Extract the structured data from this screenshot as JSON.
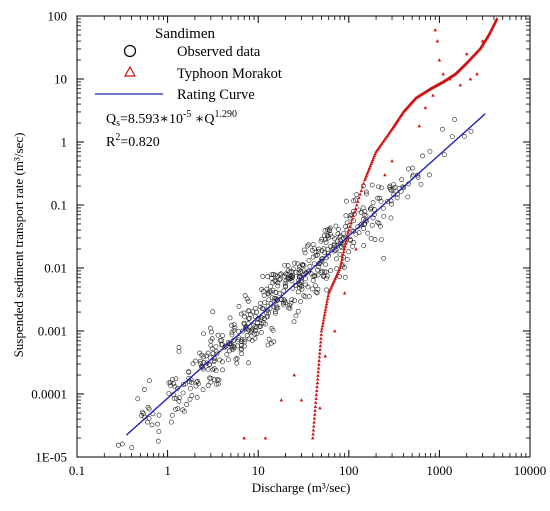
{
  "chart_data": {
    "type": "scatter",
    "title": "",
    "xlabel": "Discharge (m³/sec)",
    "ylabel": "Suspended sediment transport rate (m³/sec)",
    "x_scale": "log",
    "y_scale": "log",
    "xlim": [
      0.1,
      10000
    ],
    "ylim": [
      1e-05,
      100
    ],
    "x_ticks": [
      0.1,
      1,
      10,
      100,
      1000,
      10000
    ],
    "x_tick_labels": [
      "0.1",
      "1",
      "10",
      "100",
      "1000",
      "10000"
    ],
    "y_ticks": [
      1e-05,
      0.0001,
      0.001,
      0.01,
      0.1,
      1,
      10,
      100
    ],
    "y_tick_labels": [
      "1E-05",
      "0.0001",
      "0.001",
      "0.01",
      "0.1",
      "1",
      "10",
      "100"
    ],
    "grid": false,
    "legend": {
      "placement": "top-left",
      "title": "Sandimen",
      "entries": [
        {
          "label": "Observed data",
          "marker": "open-circle",
          "color": "#000000"
        },
        {
          "label": "Typhoon Morakot",
          "marker": "open-triangle",
          "color": "#cc0000"
        },
        {
          "label": "Rating Curve",
          "marker": "line",
          "color": "#0000cc"
        }
      ]
    },
    "annotation": {
      "equation_prefix": "Q",
      "equation_sub": "s",
      "equation_mid": "=8.593∗10",
      "equation_exp1": "-5",
      "equation_tail": " ∗Q",
      "equation_exp2": "1.290",
      "r2_prefix": "R",
      "r2_exp": "2",
      "r2_value": "=0.820"
    },
    "series": [
      {
        "name": "Rating Curve",
        "type": "line",
        "color": "#2222bb",
        "x": [
          0.35,
          3200
        ],
        "y": [
          2.22e-05,
          2.8
        ]
      },
      {
        "name": "Observed data",
        "type": "scatter",
        "marker": "open-circle",
        "color": "#222222",
        "generator": {
          "seed": 7,
          "count": 560,
          "x_range": [
            0.1,
            3700
          ],
          "coef": 8.593e-05,
          "exponent": 1.29,
          "log_sigma": 0.75,
          "y_min": 1.2e-05,
          "y_max": 90
        }
      },
      {
        "name": "Typhoon Morakot",
        "type": "scatter",
        "marker": "open-triangle",
        "color": "#cc1111",
        "path": [
          [
            40,
            2e-05
          ],
          [
            45,
            0.00015
          ],
          [
            50,
            0.001
          ],
          [
            60,
            0.004
          ],
          [
            80,
            0.01
          ],
          [
            100,
            0.04
          ],
          [
            150,
            0.25
          ],
          [
            200,
            0.7
          ],
          [
            300,
            1.6
          ],
          [
            400,
            3
          ],
          [
            550,
            5
          ],
          [
            800,
            7
          ],
          [
            1100,
            9
          ],
          [
            1500,
            12
          ],
          [
            2000,
            18
          ],
          [
            2800,
            30
          ],
          [
            3500,
            50
          ],
          [
            4300,
            90
          ]
        ],
        "extra_points": [
          [
            900,
            60
          ],
          [
            950,
            40
          ],
          [
            1000,
            20
          ],
          [
            1100,
            12
          ],
          [
            1300,
            10
          ],
          [
            1700,
            8
          ],
          [
            2200,
            10
          ],
          [
            2600,
            12
          ],
          [
            2000,
            25
          ],
          [
            3000,
            40
          ],
          [
            250,
            0.3
          ],
          [
            300,
            0.5
          ],
          [
            600,
            1.8
          ],
          [
            700,
            3.5
          ],
          [
            850,
            5.5
          ],
          [
            120,
            0.02
          ],
          [
            90,
            0.004
          ],
          [
            70,
            0.001
          ],
          [
            55,
            0.0004
          ],
          [
            48,
            6e-05
          ],
          [
            30,
            8e-05
          ],
          [
            25,
            0.0002
          ],
          [
            18,
            8e-05
          ],
          [
            12,
            2e-05
          ],
          [
            7,
            2e-05
          ]
        ]
      }
    ]
  }
}
